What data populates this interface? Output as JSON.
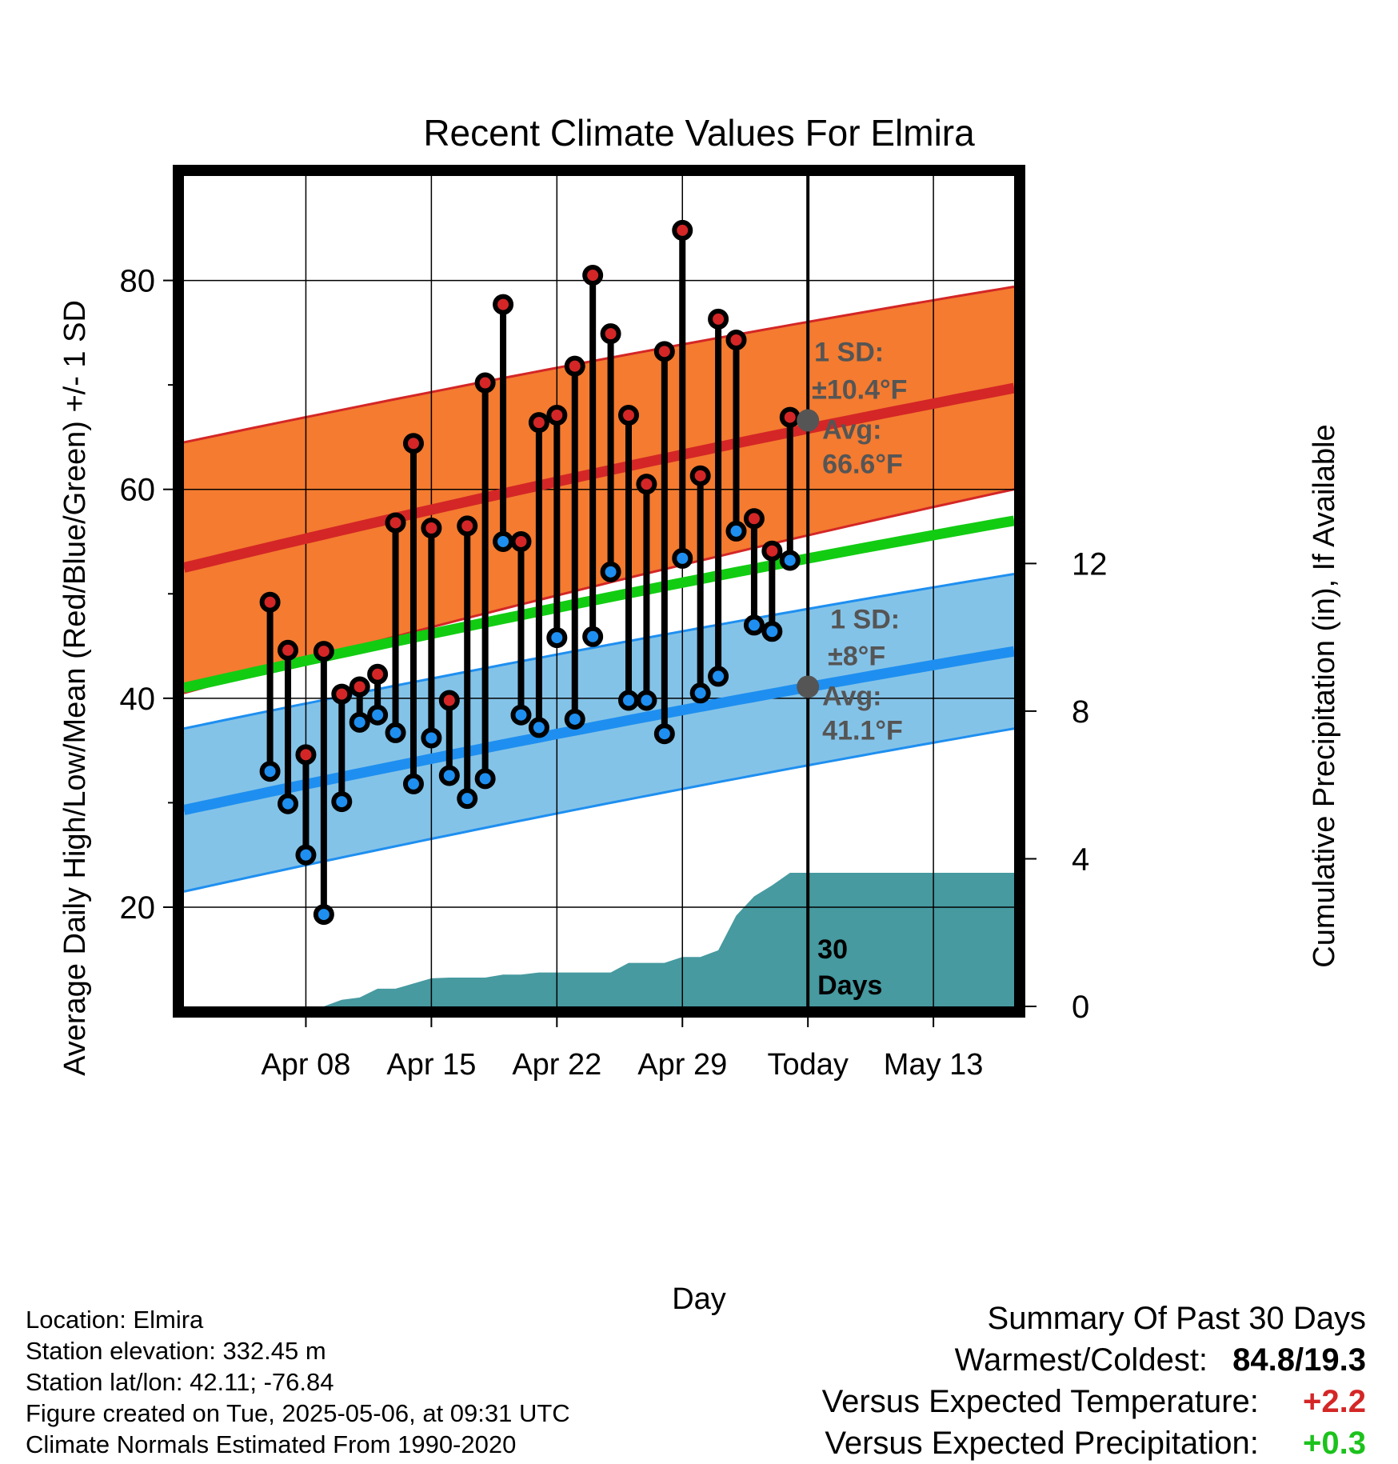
{
  "chart_data": {
    "type": "line",
    "title": "Recent Climate Values For Elmira",
    "xlabel": "Day",
    "ylabel": "Average Daily High/Low/Mean (Red/Blue/Green) +/- 1 SD",
    "y2label": "Cumulative Precipitation (in), If Available",
    "x_day_range": [
      -34.8,
      11.5
    ],
    "xlim": [
      -34.8,
      11.5
    ],
    "ylim": [
      10.5,
      90
    ],
    "y2lim": [
      0,
      22.5
    ],
    "x_ticks": [
      {
        "day": -28,
        "label": "Apr 08"
      },
      {
        "day": -21,
        "label": "Apr 15"
      },
      {
        "day": -14,
        "label": "Apr 22"
      },
      {
        "day": -7,
        "label": "Apr 29"
      },
      {
        "day": 0,
        "label": "Today"
      },
      {
        "day": 7,
        "label": "May 13"
      }
    ],
    "y_ticks": [
      20,
      40,
      60,
      80
    ],
    "y_minor_ticks": [
      30,
      50,
      70
    ],
    "y2_ticks": [
      0,
      4,
      8,
      12
    ],
    "grid": true,
    "colors": {
      "high_band": "#f47b30",
      "high_line": "#d42626",
      "low_band": "#84c3e8",
      "low_line": "#1e8ff0",
      "mean_line": "#12cc12",
      "precip": "#469aa0",
      "marker_high": "#d42626",
      "marker_low": "#1e8ff0",
      "annotation": "#555555"
    },
    "normal_high": {
      "start": 52.5,
      "end": 69.7,
      "sd_start": 12.0,
      "sd_end": 9.7
    },
    "normal_low": {
      "start": 29.3,
      "end": 44.5,
      "sd_start": 7.8,
      "sd_end": 7.4
    },
    "normal_mean": {
      "start": 41.0,
      "end": 57.0
    },
    "today_normal_high": 66.6,
    "today_normal_low": 41.1,
    "days": [
      {
        "day": -30,
        "high": 49.2,
        "low": 33.0
      },
      {
        "day": -29,
        "high": 44.6,
        "low": 29.9
      },
      {
        "day": -28,
        "high": 34.6,
        "low": 25.0
      },
      {
        "day": -27,
        "high": 44.5,
        "low": 19.3
      },
      {
        "day": -26,
        "high": 40.4,
        "low": 30.1
      },
      {
        "day": -25,
        "high": 41.1,
        "low": 37.7
      },
      {
        "day": -24,
        "high": 42.3,
        "low": 38.4
      },
      {
        "day": -23,
        "high": 56.8,
        "low": 36.7
      },
      {
        "day": -22,
        "high": 64.4,
        "low": 31.8
      },
      {
        "day": -21,
        "high": 56.3,
        "low": 36.2
      },
      {
        "day": -20,
        "high": 39.8,
        "low": 32.6
      },
      {
        "day": -19,
        "high": 56.5,
        "low": 30.4
      },
      {
        "day": -18,
        "high": 70.2,
        "low": 32.3
      },
      {
        "day": -17,
        "high": 77.7,
        "low": 55.0
      },
      {
        "day": -16,
        "high": 55.0,
        "low": 38.4
      },
      {
        "day": -15,
        "high": 66.4,
        "low": 37.2
      },
      {
        "day": -14,
        "high": 67.1,
        "low": 45.8
      },
      {
        "day": -13,
        "high": 71.8,
        "low": 38.0
      },
      {
        "day": -12,
        "high": 80.5,
        "low": 45.9
      },
      {
        "day": -11,
        "high": 74.9,
        "low": 52.1
      },
      {
        "day": -10,
        "high": 67.1,
        "low": 39.8
      },
      {
        "day": -9,
        "high": 60.5,
        "low": 39.8
      },
      {
        "day": -8,
        "high": 73.2,
        "low": 36.6
      },
      {
        "day": -7,
        "high": 84.8,
        "low": 53.4
      },
      {
        "day": -6,
        "high": 61.3,
        "low": 40.5
      },
      {
        "day": -5,
        "high": 76.3,
        "low": 42.1
      },
      {
        "day": -4,
        "high": 74.3,
        "low": 56.0
      },
      {
        "day": -3,
        "high": 57.2,
        "low": 47.0
      },
      {
        "day": -2,
        "high": 54.1,
        "low": 46.4
      },
      {
        "day": -1,
        "high": 66.9,
        "low": 53.2
      }
    ],
    "precip_cumulative": [
      {
        "day": -34.8,
        "value": 0.0
      },
      {
        "day": -27,
        "value": 0.0
      },
      {
        "day": -26,
        "value": 0.18
      },
      {
        "day": -25,
        "value": 0.24
      },
      {
        "day": -24,
        "value": 0.48
      },
      {
        "day": -23,
        "value": 0.48
      },
      {
        "day": -22,
        "value": 0.62
      },
      {
        "day": -21,
        "value": 0.76
      },
      {
        "day": -20,
        "value": 0.78
      },
      {
        "day": -18,
        "value": 0.78
      },
      {
        "day": -17,
        "value": 0.86
      },
      {
        "day": -16,
        "value": 0.86
      },
      {
        "day": -15,
        "value": 0.92
      },
      {
        "day": -11,
        "value": 0.92
      },
      {
        "day": -10,
        "value": 1.18
      },
      {
        "day": -8,
        "value": 1.18
      },
      {
        "day": -7,
        "value": 1.34
      },
      {
        "day": -6,
        "value": 1.34
      },
      {
        "day": -5,
        "value": 1.52
      },
      {
        "day": -4,
        "value": 2.46
      },
      {
        "day": -3,
        "value": 2.98
      },
      {
        "day": -2,
        "value": 3.28
      },
      {
        "day": -1,
        "value": 3.62
      },
      {
        "day": 11.5,
        "value": 3.62
      }
    ],
    "annotations": {
      "high_sd_label": "1 SD:",
      "high_sd_value": "±10.4°F",
      "high_avg_label": "Avg:",
      "high_avg_value": "66.6°F",
      "low_sd_label": "1 SD:",
      "low_sd_value": "±8°F",
      "low_avg_label": "Avg:",
      "low_avg_value": "41.1°F",
      "window_line1": "30",
      "window_line2": "Days"
    }
  },
  "info": {
    "location": "Location: Elmira",
    "elevation": "Station elevation: 332.45 m",
    "latlon": "Station lat/lon: 42.11; -76.84",
    "created": "Figure created on Tue, 2025-05-06, at 09:31 UTC",
    "normals": "Climate Normals Estimated From 1990-2020"
  },
  "summary": {
    "title": "Summary Of Past 30 Days",
    "warm_cold_label": "Warmest/Coldest:",
    "warm_cold_value": "84.8/19.3",
    "temp_label": "Versus Expected Temperature:",
    "temp_value": "+2.2",
    "temp_color": "#d42626",
    "precip_label": "Versus Expected Precipitation:",
    "precip_value": "+0.3",
    "precip_color": "#1cc21c"
  }
}
